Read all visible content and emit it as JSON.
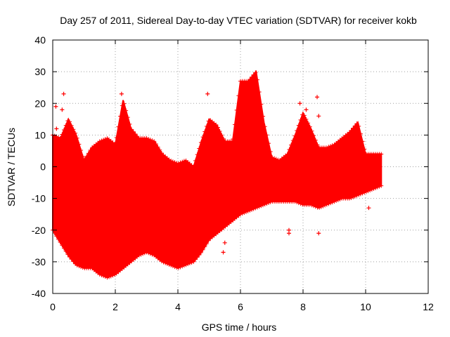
{
  "chart_data": {
    "type": "scatter",
    "title": "Day 257 of 2011, Sidereal Day-to-day VTEC variation (SDTVAR) for receiver kokb",
    "xlabel": "GPS time / hours",
    "ylabel": "SDTVAR / TECUs",
    "xlim": [
      0,
      12
    ],
    "ylim": [
      -40,
      40
    ],
    "xticks": [
      0,
      2,
      4,
      6,
      8,
      10,
      12
    ],
    "yticks": [
      -40,
      -30,
      -20,
      -10,
      0,
      10,
      20,
      30,
      40
    ],
    "grid": true,
    "marker": "+",
    "series": [
      {
        "name": "SDTVAR",
        "color": "#ff0000",
        "envelope_x": [
          0.0,
          0.25,
          0.5,
          0.75,
          1.0,
          1.25,
          1.5,
          1.75,
          2.0,
          2.25,
          2.5,
          2.75,
          3.0,
          3.25,
          3.5,
          3.75,
          4.0,
          4.25,
          4.5,
          4.75,
          5.0,
          5.25,
          5.5,
          5.75,
          6.0,
          6.25,
          6.5,
          6.75,
          7.0,
          7.25,
          7.5,
          7.75,
          8.0,
          8.25,
          8.5,
          8.75,
          9.0,
          9.25,
          9.5,
          9.75,
          10.0,
          10.25,
          10.5
        ],
        "envelope_upper": [
          10,
          9,
          15,
          10,
          2,
          6,
          8,
          9,
          7,
          21,
          12,
          9,
          9,
          8,
          4,
          2,
          1,
          2,
          0,
          8,
          15,
          13,
          8,
          8,
          27,
          27,
          30,
          14,
          3,
          2,
          4,
          10,
          17,
          12,
          6,
          6,
          7,
          9,
          11,
          14,
          4,
          4,
          4
        ],
        "envelope_lower": [
          -20,
          -24,
          -28,
          -31,
          -32,
          -32,
          -34,
          -35,
          -34,
          -32,
          -30,
          -28,
          -27,
          -28,
          -30,
          -31,
          -32,
          -31,
          -30,
          -27,
          -23,
          -21,
          -19,
          -17,
          -15,
          -14,
          -13,
          -12,
          -11,
          -11,
          -11,
          -11,
          -12,
          -12,
          -13,
          -12,
          -11,
          -10,
          -10,
          -9,
          -8,
          -7,
          -6
        ],
        "outliers": [
          {
            "x": 0.1,
            "y": 19
          },
          {
            "x": 0.12,
            "y": 12
          },
          {
            "x": 0.3,
            "y": 18
          },
          {
            "x": 0.35,
            "y": 23
          },
          {
            "x": 2.2,
            "y": 23
          },
          {
            "x": 3.7,
            "y": 0
          },
          {
            "x": 4.95,
            "y": 23
          },
          {
            "x": 5.45,
            "y": -27
          },
          {
            "x": 5.5,
            "y": -24
          },
          {
            "x": 7.55,
            "y": -20
          },
          {
            "x": 7.55,
            "y": -21
          },
          {
            "x": 7.9,
            "y": 20
          },
          {
            "x": 8.1,
            "y": 18
          },
          {
            "x": 8.45,
            "y": 22
          },
          {
            "x": 8.5,
            "y": 16
          },
          {
            "x": 8.5,
            "y": -21
          },
          {
            "x": 10.1,
            "y": -13
          }
        ]
      }
    ]
  }
}
